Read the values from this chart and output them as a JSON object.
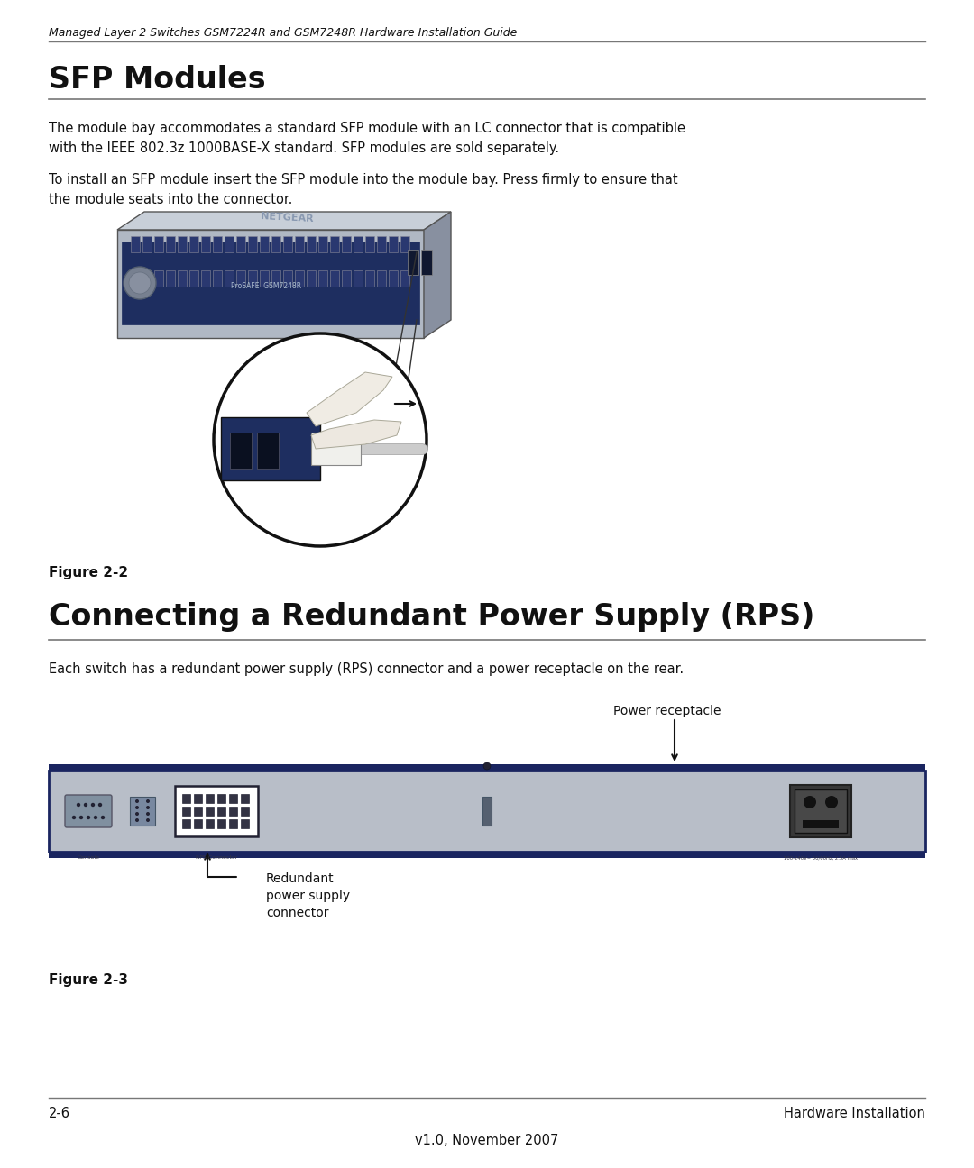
{
  "page_width": 10.8,
  "page_height": 12.96,
  "bg_color": "#ffffff",
  "header_italic": "Managed Layer 2 Switches GSM7224R and GSM7248R Hardware Installation Guide",
  "section1_title": "SFP Modules",
  "section1_body1": "The module bay accommodates a standard SFP module with an LC connector that is compatible\nwith the IEEE 802.3z 1000BASE-X standard. SFP modules are sold separately.",
  "section1_body2": "To install an SFP module insert the SFP module into the module bay. Press firmly to ensure that\nthe module seats into the connector.",
  "figure2_caption": "Figure 2-2",
  "section2_title": "Connecting a Redundant Power Supply (RPS)",
  "section2_body": "Each switch has a redundant power supply (RPS) connector and a power receptacle on the rear.",
  "label_power_receptacle": "Power receptacle",
  "label_rps_line1": "Redundant",
  "label_rps_line2": "power supply",
  "label_rps_line3": "connector",
  "figure3_caption": "Figure 2-3",
  "footer_left": "2-6",
  "footer_right": "Hardware Installation",
  "footer_center": "v1.0, November 2007",
  "header_line_color": "#777777",
  "section_line_color": "#777777",
  "footer_line_color": "#777777",
  "switch_body_color": "#b8bec8",
  "switch_border_color": "#1a2560",
  "text_color": "#111111"
}
